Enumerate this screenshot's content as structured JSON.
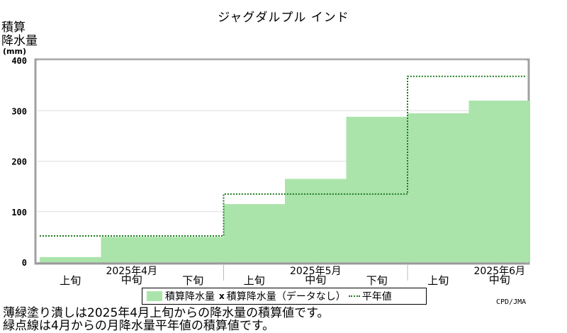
{
  "chart_data": {
    "type": "area",
    "title": "ジャグダルプル インド",
    "ylabel": "積算\n降水量",
    "unit": "(mm)",
    "ylim": [
      0,
      400
    ],
    "yticks": [
      0,
      100,
      200,
      300,
      400
    ],
    "periods": [
      "上旬",
      "中旬",
      "下旬",
      "上旬",
      "中旬",
      "下旬",
      "上旬",
      "中旬"
    ],
    "months": [
      {
        "label": "2025年4月",
        "period_index": 1
      },
      {
        "label": "2025年5月",
        "period_index": 4
      },
      {
        "label": "2025年6月",
        "period_index": 7
      }
    ],
    "series": [
      {
        "name": "積算降水量",
        "color": "#aae4aa",
        "values": [
          10,
          50,
          50,
          115,
          165,
          288,
          295,
          320
        ]
      },
      {
        "name": "平年値",
        "color": "#1e7a1e",
        "values": [
          52,
          52,
          52,
          135,
          135,
          135,
          368,
          368
        ]
      }
    ]
  },
  "legend": {
    "observed": "積算降水量",
    "missing_marker": "x",
    "missing": "積算降水量（データなし）",
    "normal": "平年値"
  },
  "credit": "CPD/JMA",
  "notes": [
    "薄緑塗り潰しは2025年4月上旬からの降水量の積算値です。",
    "緑点線は4月からの月降水量平年値の積算値です。"
  ]
}
